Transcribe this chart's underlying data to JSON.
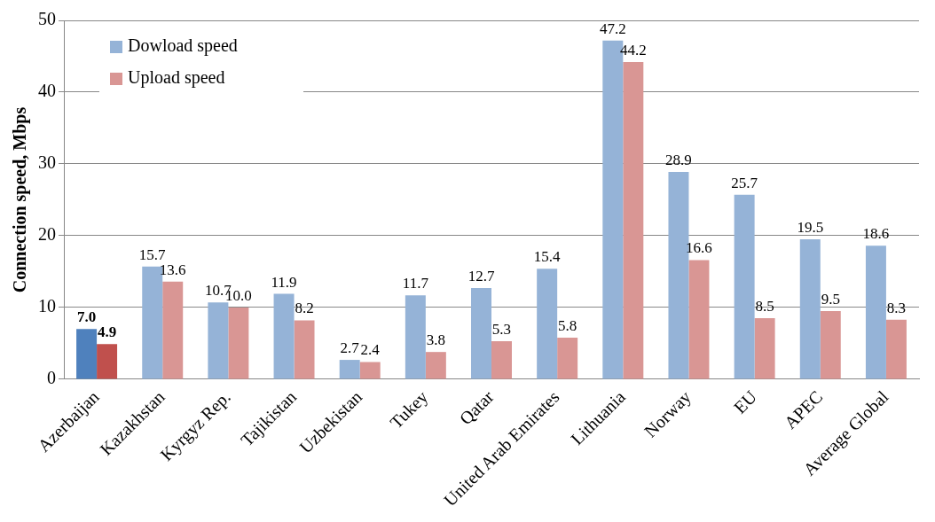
{
  "chart_data": {
    "type": "bar",
    "ylabel": "Connection speed, Mbps",
    "categories": [
      "Azerbaijan",
      "Kazakhstan",
      "Kyrgyz Rep.",
      "Tajikistan",
      "Uzbekistan",
      "Tukey",
      "Qatar",
      "United Arab Emirates",
      "Lithuania",
      "Norway",
      "EU",
      "APEC",
      "Average Global"
    ],
    "series": [
      {
        "name": "Dowload speed",
        "color": "#95b3d7",
        "colors": [
          "#4f81bd",
          "#95b3d7",
          "#95b3d7",
          "#95b3d7",
          "#95b3d7",
          "#95b3d7",
          "#95b3d7",
          "#95b3d7",
          "#95b3d7",
          "#95b3d7",
          "#95b3d7",
          "#95b3d7",
          "#95b3d7"
        ],
        "values": [
          7.0,
          15.7,
          10.7,
          11.9,
          2.7,
          11.7,
          12.7,
          15.4,
          47.2,
          28.9,
          25.7,
          19.5,
          18.6
        ],
        "value_labels": [
          "7.0",
          "15.7",
          "10.7",
          "11.9",
          "2.7",
          "11.7",
          "12.7",
          "15.4",
          "47.2",
          "28.9",
          "25.7",
          "19.5",
          "18.6"
        ]
      },
      {
        "name": "Upload speed",
        "color": "#d99694",
        "colors": [
          "#c0504d",
          "#d99694",
          "#d99694",
          "#d99694",
          "#d99694",
          "#d99694",
          "#d99694",
          "#d99694",
          "#d99694",
          "#d99694",
          "#d99694",
          "#d99694",
          "#d99694"
        ],
        "values": [
          4.9,
          13.6,
          10.0,
          8.2,
          2.4,
          3.8,
          5.3,
          5.8,
          44.2,
          16.6,
          8.5,
          9.5,
          8.3
        ],
        "value_labels": [
          "4.9",
          "13.6",
          "10.0",
          "8.2",
          "2.4",
          "3.8",
          "5.3",
          "5.8",
          "44.2",
          "16.6",
          "8.5",
          "9.5",
          "8.3"
        ]
      }
    ],
    "ylim": [
      0,
      50
    ],
    "yticks": [
      0,
      10,
      20,
      30,
      40,
      50
    ],
    "grid": "y",
    "legend": "top left"
  }
}
